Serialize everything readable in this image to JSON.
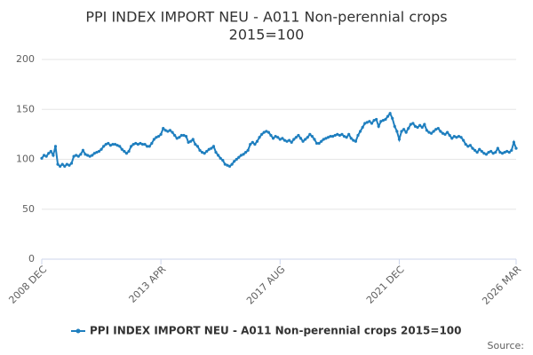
{
  "chart_data": {
    "type": "line",
    "title": [
      "PPI INDEX IMPORT NEU - A011 Non-perennial crops",
      "2015=100"
    ],
    "categories": [
      "2008 DEC",
      null,
      null,
      null,
      null,
      null,
      null,
      null,
      null,
      null,
      null,
      null,
      null,
      null,
      null,
      null,
      null,
      null,
      null,
      null,
      null,
      null,
      null,
      null,
      null,
      null,
      null,
      null,
      null,
      null,
      null,
      null,
      null,
      null,
      null,
      null,
      null,
      null,
      null,
      null,
      null,
      null,
      null,
      null,
      null,
      null,
      null,
      null,
      null,
      null,
      null,
      null,
      "2013 APR",
      null,
      null,
      null,
      null,
      null,
      null,
      null,
      null,
      null,
      null,
      null,
      null,
      null,
      null,
      null,
      null,
      null,
      null,
      null,
      null,
      null,
      null,
      null,
      null,
      null,
      null,
      null,
      null,
      null,
      null,
      null,
      null,
      null,
      null,
      null,
      null,
      null,
      null,
      null,
      null,
      null,
      null,
      null,
      null,
      null,
      null,
      null,
      null,
      null,
      null,
      null,
      "2017 AUG",
      null,
      null,
      null,
      null,
      null,
      null,
      null,
      null,
      null,
      null,
      null,
      null,
      null,
      null,
      null,
      null,
      null,
      null,
      null,
      null,
      null,
      null,
      null,
      null,
      null,
      null,
      null,
      null,
      null,
      null,
      null,
      null,
      null,
      null,
      null,
      null,
      null,
      null,
      null,
      null,
      null,
      null,
      null,
      null,
      null,
      null,
      null,
      null,
      null,
      null,
      null,
      "2021 DEC",
      null,
      null,
      null,
      null,
      null,
      null,
      null,
      null,
      null,
      null,
      null,
      null,
      null,
      null,
      null,
      null,
      null,
      null,
      null,
      null,
      null,
      null,
      null,
      null,
      null,
      null,
      null,
      null,
      null,
      null,
      null,
      null,
      null,
      null,
      null,
      null,
      null,
      null,
      null,
      null,
      null,
      null,
      null,
      null,
      null,
      null,
      null,
      null,
      null,
      null,
      "2026 MAR"
    ],
    "series": [
      {
        "name": "PPI INDEX IMPORT NEU - A011 Non-perennial crops 2015=100",
        "color": "#1f7fbf",
        "values": [
          101,
          104,
          103,
          106,
          108,
          104,
          113,
          95,
          93,
          95,
          93,
          95,
          94,
          96,
          103,
          104,
          103,
          105,
          109,
          105,
          104,
          103,
          104,
          106,
          107,
          108,
          110,
          113,
          115,
          116,
          114,
          115,
          115,
          114,
          113,
          110,
          108,
          106,
          108,
          113,
          115,
          116,
          115,
          116,
          115,
          115,
          113,
          113,
          116,
          120,
          122,
          123,
          125,
          131,
          129,
          128,
          129,
          127,
          124,
          121,
          122,
          124,
          124,
          123,
          117,
          118,
          120,
          115,
          113,
          109,
          107,
          106,
          108,
          110,
          111,
          113,
          107,
          104,
          101,
          99,
          95,
          94,
          93,
          95,
          98,
          100,
          102,
          104,
          105,
          107,
          109,
          115,
          117,
          115,
          118,
          122,
          125,
          127,
          128,
          127,
          124,
          121,
          123,
          122,
          120,
          121,
          119,
          118,
          119,
          117,
          120,
          122,
          124,
          121,
          118,
          120,
          122,
          125,
          123,
          120,
          116,
          116,
          118,
          120,
          121,
          122,
          123,
          123,
          124,
          125,
          124,
          125,
          123,
          122,
          125,
          121,
          119,
          118,
          124,
          128,
          132,
          136,
          137,
          138,
          136,
          139,
          140,
          133,
          138,
          139,
          140,
          143,
          146,
          141,
          133,
          128,
          120,
          128,
          130,
          127,
          131,
          135,
          136,
          133,
          132,
          134,
          132,
          135,
          129,
          127,
          126,
          128,
          130,
          131,
          128,
          126,
          125,
          127,
          124,
          121,
          123,
          122,
          123,
          122,
          119,
          115,
          113,
          114,
          111,
          109,
          107,
          110,
          108,
          106,
          105,
          107,
          108,
          106,
          107,
          111,
          107,
          106,
          107,
          108,
          107,
          109,
          117,
          111
        ]
      }
    ],
    "ylim": [
      0,
      200
    ],
    "yticks": [
      0,
      50,
      100,
      150,
      200
    ],
    "grid": true,
    "legend": "bottom",
    "source": "Source:"
  }
}
